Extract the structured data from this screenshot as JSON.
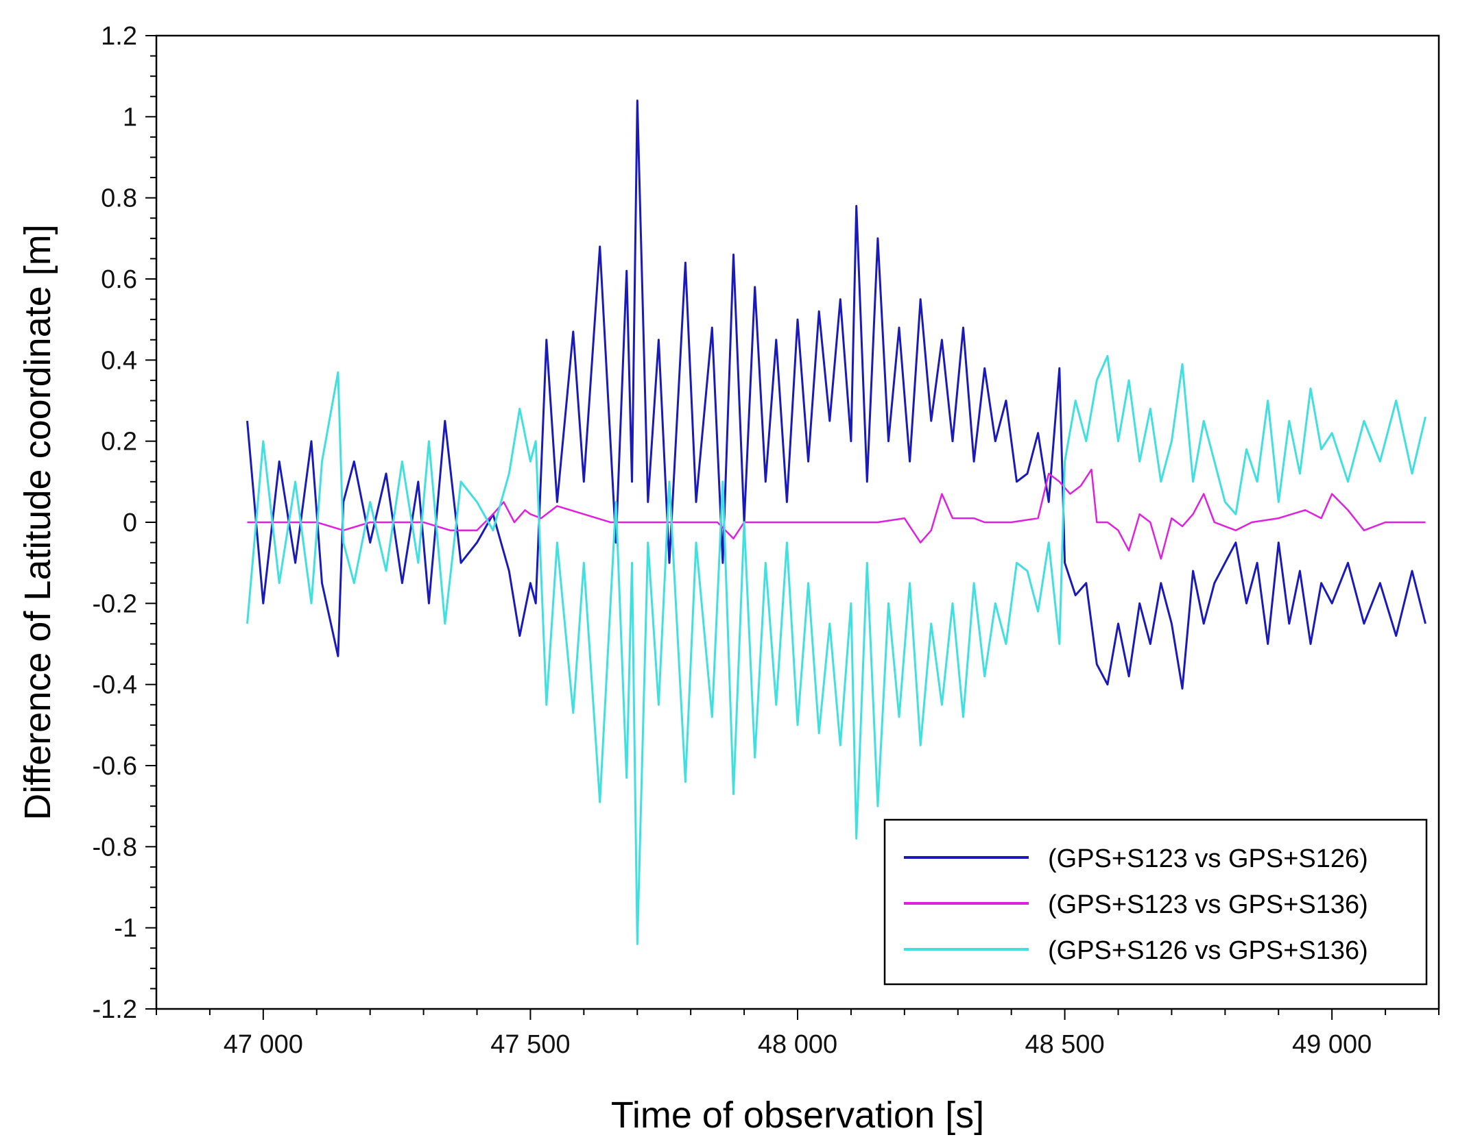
{
  "chart_data": {
    "type": "line",
    "title": "",
    "xlabel": "Time of observation [s]",
    "ylabel": "Difference of Latitude coordinate [m]",
    "xlim": [
      46800,
      49200
    ],
    "ylim": [
      -1.2,
      1.2
    ],
    "x_ticks": [
      47000,
      47500,
      48000,
      48500,
      49000
    ],
    "x_tick_labels": [
      "47 000",
      "47 500",
      "48 000",
      "48 500",
      "49 000"
    ],
    "x_minor_step": 100,
    "y_ticks": [
      -1.2,
      -1.0,
      -0.8,
      -0.6,
      -0.4,
      -0.2,
      0,
      0.2,
      0.4,
      0.6,
      0.8,
      1.0,
      1.2
    ],
    "y_tick_labels": [
      "-1.2",
      "-1",
      "-0.8",
      "-0.6",
      "-0.4",
      "-0.2",
      "0",
      "0.2",
      "0.4",
      "0.6",
      "0.8",
      "1",
      "1.2"
    ],
    "y_minor_step": 0.05,
    "grid": false,
    "legend_position": "bottom-right",
    "series": [
      {
        "name": "(GPS+S123 vs GPS+S126)",
        "color": "#1a1ab8",
        "x": [
          46970,
          47000,
          47030,
          47060,
          47090,
          47110,
          47140,
          47150,
          47170,
          47200,
          47230,
          47260,
          47290,
          47310,
          47340,
          47370,
          47400,
          47430,
          47460,
          47480,
          47500,
          47510,
          47530,
          47550,
          47580,
          47600,
          47630,
          47660,
          47680,
          47690,
          47700,
          47720,
          47740,
          47760,
          47790,
          47810,
          47840,
          47860,
          47880,
          47900,
          47920,
          47940,
          47960,
          47980,
          48000,
          48020,
          48040,
          48060,
          48080,
          48100,
          48110,
          48130,
          48150,
          48170,
          48190,
          48210,
          48230,
          48250,
          48270,
          48290,
          48310,
          48330,
          48350,
          48370,
          48390,
          48410,
          48430,
          48450,
          48470,
          48490,
          48500,
          48520,
          48540,
          48560,
          48580,
          48600,
          48620,
          48640,
          48660,
          48680,
          48700,
          48720,
          48740,
          48760,
          48780,
          48800,
          48820,
          48840,
          48860,
          48880,
          48900,
          48920,
          48940,
          48960,
          48980,
          49000,
          49030,
          49060,
          49090,
          49120,
          49150,
          49175
        ],
        "y": [
          0.25,
          -0.2,
          0.15,
          -0.1,
          0.2,
          -0.15,
          -0.33,
          0.05,
          0.15,
          -0.05,
          0.12,
          -0.15,
          0.1,
          -0.2,
          0.25,
          -0.1,
          -0.05,
          0.02,
          -0.12,
          -0.28,
          -0.15,
          -0.2,
          0.45,
          0.05,
          0.47,
          0.1,
          0.68,
          -0.05,
          0.62,
          0.1,
          1.04,
          0.05,
          0.45,
          -0.1,
          0.64,
          0.05,
          0.48,
          -0.1,
          0.66,
          0.0,
          0.58,
          0.1,
          0.45,
          0.05,
          0.5,
          0.15,
          0.52,
          0.25,
          0.55,
          0.2,
          0.78,
          0.1,
          0.7,
          0.2,
          0.48,
          0.15,
          0.55,
          0.25,
          0.45,
          0.2,
          0.48,
          0.15,
          0.38,
          0.2,
          0.3,
          0.1,
          0.12,
          0.22,
          0.05,
          0.38,
          -0.1,
          -0.18,
          -0.15,
          -0.35,
          -0.4,
          -0.25,
          -0.38,
          -0.2,
          -0.3,
          -0.15,
          -0.25,
          -0.41,
          -0.12,
          -0.25,
          -0.15,
          -0.1,
          -0.05,
          -0.2,
          -0.1,
          -0.3,
          -0.05,
          -0.25,
          -0.12,
          -0.3,
          -0.15,
          -0.2,
          -0.1,
          -0.25,
          -0.15,
          -0.28,
          -0.12,
          -0.25
        ]
      },
      {
        "name": "(GPS+S123 vs GPS+S136)",
        "color": "#e020e0",
        "x": [
          46970,
          47000,
          47050,
          47100,
          47150,
          47200,
          47250,
          47300,
          47350,
          47400,
          47430,
          47450,
          47470,
          47490,
          47500,
          47520,
          47550,
          47600,
          47650,
          47700,
          47750,
          47800,
          47850,
          47880,
          47900,
          47950,
          48000,
          48050,
          48100,
          48150,
          48200,
          48230,
          48250,
          48270,
          48290,
          48310,
          48330,
          48350,
          48400,
          48450,
          48470,
          48490,
          48510,
          48530,
          48550,
          48560,
          48580,
          48600,
          48620,
          48640,
          48660,
          48680,
          48700,
          48720,
          48740,
          48760,
          48780,
          48800,
          48820,
          48850,
          48900,
          48950,
          48980,
          49000,
          49030,
          49060,
          49100,
          49140,
          49175
        ],
        "y": [
          0.0,
          0.0,
          0.0,
          0.0,
          -0.02,
          0.0,
          0.0,
          0.0,
          -0.02,
          -0.02,
          0.02,
          0.05,
          0.0,
          0.03,
          0.02,
          0.01,
          0.04,
          0.02,
          0.0,
          0.0,
          0.0,
          0.0,
          0.0,
          -0.04,
          0.0,
          0.0,
          0.0,
          0.0,
          0.0,
          0.0,
          0.01,
          -0.05,
          -0.02,
          0.07,
          0.01,
          0.01,
          0.01,
          0.0,
          0.0,
          0.01,
          0.12,
          0.1,
          0.07,
          0.09,
          0.13,
          0.0,
          0.0,
          -0.02,
          -0.07,
          0.02,
          0.0,
          -0.09,
          0.01,
          -0.01,
          0.02,
          0.07,
          0.0,
          -0.01,
          -0.02,
          0.0,
          0.01,
          0.03,
          0.01,
          0.07,
          0.03,
          -0.02,
          0.0,
          0.0,
          0.0
        ]
      },
      {
        "name": "(GPS+S126 vs GPS+S136)",
        "color": "#40e0e0",
        "x": [
          46970,
          47000,
          47030,
          47060,
          47090,
          47110,
          47140,
          47150,
          47170,
          47200,
          47230,
          47260,
          47290,
          47310,
          47340,
          47370,
          47400,
          47430,
          47460,
          47480,
          47500,
          47510,
          47530,
          47550,
          47580,
          47600,
          47630,
          47660,
          47680,
          47690,
          47700,
          47720,
          47740,
          47760,
          47790,
          47810,
          47840,
          47860,
          47880,
          47900,
          47920,
          47940,
          47960,
          47980,
          48000,
          48020,
          48040,
          48060,
          48080,
          48100,
          48110,
          48130,
          48150,
          48170,
          48190,
          48210,
          48230,
          48250,
          48270,
          48290,
          48310,
          48330,
          48350,
          48370,
          48390,
          48410,
          48430,
          48450,
          48470,
          48490,
          48500,
          48520,
          48540,
          48560,
          48580,
          48600,
          48620,
          48640,
          48660,
          48680,
          48700,
          48720,
          48740,
          48760,
          48780,
          48800,
          48820,
          48840,
          48860,
          48880,
          48900,
          48920,
          48940,
          48960,
          48980,
          49000,
          49030,
          49060,
          49090,
          49120,
          49150,
          49175
        ],
        "y": [
          -0.25,
          0.2,
          -0.15,
          0.1,
          -0.2,
          0.15,
          0.37,
          -0.05,
          -0.15,
          0.05,
          -0.12,
          0.15,
          -0.1,
          0.2,
          -0.25,
          0.1,
          0.05,
          -0.02,
          0.12,
          0.28,
          0.15,
          0.2,
          -0.45,
          -0.05,
          -0.47,
          -0.1,
          -0.69,
          0.05,
          -0.63,
          -0.1,
          -1.04,
          -0.05,
          -0.45,
          0.1,
          -0.64,
          -0.05,
          -0.48,
          0.1,
          -0.67,
          0.0,
          -0.58,
          -0.1,
          -0.45,
          -0.05,
          -0.5,
          -0.15,
          -0.52,
          -0.25,
          -0.55,
          -0.2,
          -0.78,
          -0.1,
          -0.7,
          -0.2,
          -0.48,
          -0.15,
          -0.55,
          -0.25,
          -0.45,
          -0.2,
          -0.48,
          -0.15,
          -0.38,
          -0.2,
          -0.3,
          -0.1,
          -0.12,
          -0.22,
          -0.05,
          -0.3,
          0.15,
          0.3,
          0.2,
          0.35,
          0.41,
          0.2,
          0.35,
          0.15,
          0.28,
          0.1,
          0.2,
          0.39,
          0.1,
          0.25,
          0.15,
          0.05,
          0.02,
          0.18,
          0.1,
          0.3,
          0.05,
          0.25,
          0.12,
          0.33,
          0.18,
          0.22,
          0.1,
          0.25,
          0.15,
          0.3,
          0.12,
          0.26
        ]
      }
    ]
  }
}
